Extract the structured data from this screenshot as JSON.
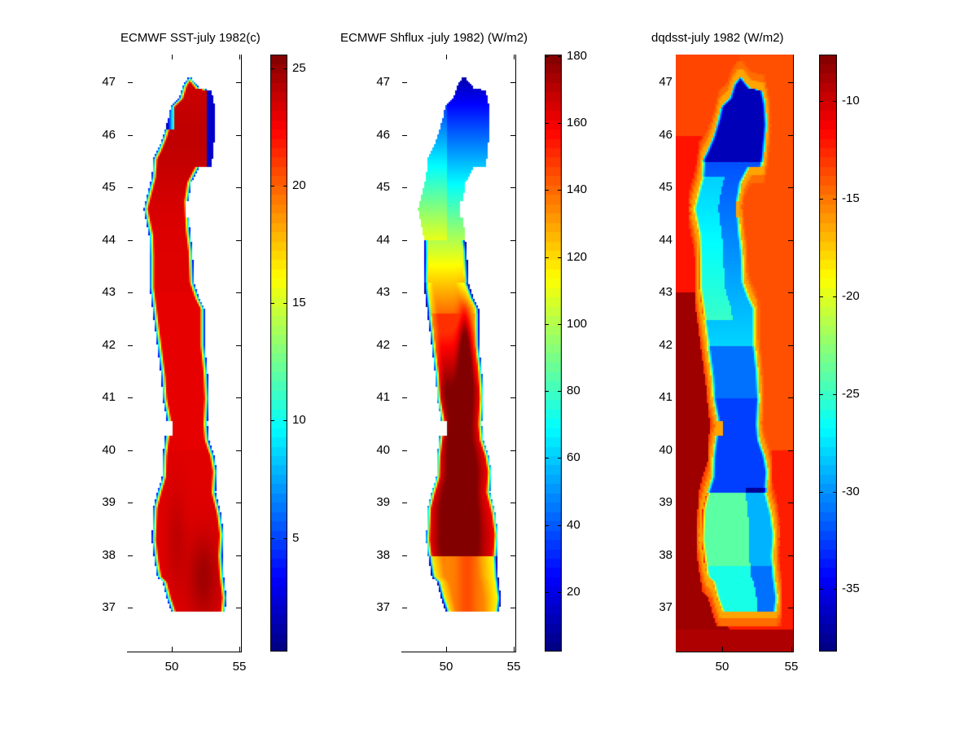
{
  "chart_data": [
    {
      "type": "heatmap",
      "title": "ECMWF SST-july 1982(c)",
      "xlabel": "",
      "ylabel": "",
      "xlim": [
        46.7,
        55.1
      ],
      "ylim": [
        36.17,
        47.53
      ],
      "x_ticks": [
        50,
        55
      ],
      "x_tick_labels": [
        "50",
        "55"
      ],
      "y_ticks": [
        37,
        38,
        39,
        40,
        41,
        42,
        43,
        44,
        45,
        46,
        47
      ],
      "y_tick_labels": [
        "37",
        "38",
        "39",
        "40",
        "41",
        "42",
        "43",
        "44",
        "45",
        "46",
        "47"
      ],
      "colormap": "jet",
      "clim": [
        0.16,
        25.6
      ],
      "colorbar_ticks": [
        5,
        10,
        15,
        20,
        25
      ],
      "colorbar_tick_labels": [
        "5",
        "10",
        "15",
        "20",
        "25"
      ],
      "masked_to_sea": true,
      "field": "sst",
      "description_values": {
        "interior_typical": 23.5,
        "max_south": 25.5,
        "edge_min": 2
      }
    },
    {
      "type": "heatmap",
      "title": "ECMWF Shflux -july 1982)  (W/m2)",
      "xlabel": "",
      "ylabel": "",
      "xlim": [
        46.7,
        55.1
      ],
      "ylim": [
        36.17,
        47.53
      ],
      "x_ticks": [
        50,
        55
      ],
      "x_tick_labels": [
        "50",
        "55"
      ],
      "y_ticks": [
        37,
        38,
        39,
        40,
        41,
        42,
        43,
        44,
        45,
        46,
        47
      ],
      "y_tick_labels": [
        "37",
        "38",
        "39",
        "40",
        "41",
        "42",
        "43",
        "44",
        "45",
        "46",
        "47"
      ],
      "colormap": "jet",
      "clim": [
        2.2,
        180.5
      ],
      "colorbar_ticks": [
        20,
        40,
        60,
        80,
        100,
        120,
        140,
        160,
        180
      ],
      "colorbar_tick_labels": [
        "20",
        "40",
        "60",
        "80",
        "100",
        "120",
        "140",
        "160",
        "180"
      ],
      "masked_to_sea": true,
      "field": "shflux",
      "description_values": {
        "north_min": 10,
        "mid_44": 100,
        "south_max": 178
      }
    },
    {
      "type": "heatmap",
      "title": "dqdsst-july 1982 (W/m2)",
      "xlabel": "",
      "ylabel": "",
      "xlim": [
        46.7,
        55.1
      ],
      "ylim": [
        36.17,
        47.53
      ],
      "x_ticks": [
        50,
        55
      ],
      "x_tick_labels": [
        "50",
        "55"
      ],
      "y_ticks": [
        37,
        38,
        39,
        40,
        41,
        42,
        43,
        44,
        45,
        46,
        47
      ],
      "y_tick_labels": [
        "37",
        "38",
        "39",
        "40",
        "41",
        "42",
        "43",
        "44",
        "45",
        "46",
        "47"
      ],
      "colormap": "jet",
      "clim": [
        -38.2,
        -7.6
      ],
      "colorbar_ticks": [
        -35,
        -30,
        -25,
        -20,
        -15,
        -10
      ],
      "colorbar_tick_labels": [
        "-35",
        "-30",
        "-25",
        "-20",
        "-15",
        "-10"
      ],
      "masked_to_sea": false,
      "field": "dqdsst",
      "description_values": {
        "land_east": -14,
        "land_west": -9,
        "sea_north": -35,
        "sea_south": -24
      }
    }
  ],
  "coastline": {
    "units": "degrees lon/lat",
    "west": [
      [
        51.2,
        47.1
      ],
      [
        50.8,
        46.95
      ],
      [
        50.5,
        46.7
      ],
      [
        49.9,
        46.55
      ],
      [
        49.7,
        46.3
      ],
      [
        49.3,
        45.95
      ],
      [
        48.9,
        45.7
      ],
      [
        48.6,
        45.55
      ],
      [
        48.5,
        45.2
      ],
      [
        48.2,
        44.9
      ],
      [
        47.9,
        44.6
      ],
      [
        48.1,
        44.35
      ],
      [
        48.3,
        44.1
      ],
      [
        48.35,
        43.7
      ],
      [
        48.35,
        43.1
      ],
      [
        48.6,
        42.6
      ],
      [
        48.9,
        42.0
      ],
      [
        49.2,
        41.4
      ],
      [
        49.3,
        41.0
      ],
      [
        49.6,
        40.6
      ],
      [
        49.5,
        40.3
      ],
      [
        49.3,
        39.9
      ],
      [
        49.25,
        39.5
      ],
      [
        48.9,
        39.2
      ],
      [
        48.6,
        38.9
      ],
      [
        48.5,
        38.3
      ],
      [
        48.7,
        37.9
      ],
      [
        48.9,
        37.6
      ],
      [
        49.3,
        37.5
      ],
      [
        49.6,
        37.2
      ],
      [
        50.0,
        36.9
      ],
      [
        50.5,
        36.6
      ],
      [
        51.2,
        36.6
      ],
      [
        52.0,
        36.7
      ],
      [
        53.0,
        36.9
      ],
      [
        53.9,
        36.95
      ]
    ],
    "east": [
      [
        51.4,
        47.1
      ],
      [
        52.0,
        46.9
      ],
      [
        52.9,
        46.85
      ],
      [
        53.1,
        46.6
      ],
      [
        53.2,
        46.2
      ],
      [
        53.1,
        45.9
      ],
      [
        53.0,
        45.6
      ],
      [
        52.9,
        45.4
      ],
      [
        52.0,
        45.4
      ],
      [
        51.4,
        45.1
      ],
      [
        51.2,
        44.75
      ],
      [
        51.3,
        44.2
      ],
      [
        51.5,
        43.8
      ],
      [
        51.6,
        43.2
      ],
      [
        52.0,
        42.9
      ],
      [
        52.4,
        42.7
      ],
      [
        52.4,
        42.0
      ],
      [
        52.6,
        41.5
      ],
      [
        52.7,
        41.0
      ],
      [
        52.6,
        40.5
      ],
      [
        52.7,
        40.2
      ],
      [
        53.1,
        39.9
      ],
      [
        53.3,
        39.6
      ],
      [
        53.2,
        39.2
      ],
      [
        53.6,
        38.8
      ],
      [
        53.8,
        38.4
      ],
      [
        53.7,
        38.0
      ],
      [
        53.8,
        37.6
      ],
      [
        54.0,
        37.2
      ],
      [
        53.9,
        36.95
      ]
    ]
  }
}
